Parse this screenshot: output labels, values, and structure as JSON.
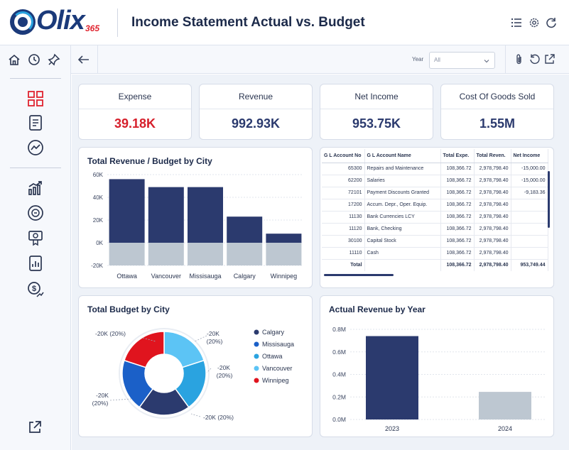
{
  "header": {
    "logo_text": "Olix",
    "logo_sub": "365",
    "title": "Income Statement Actual vs. Budget"
  },
  "toolbar": {
    "year_label": "Year",
    "year_value": "All"
  },
  "kpis": [
    {
      "title": "Expense",
      "value": "39.18K",
      "color": "#d61f2b"
    },
    {
      "title": "Revenue",
      "value": "992.93K",
      "color": "#2b3a6e"
    },
    {
      "title": "Net Income",
      "value": "953.75K",
      "color": "#2b3a6e"
    },
    {
      "title": "Cost Of Goods Sold",
      "value": "1.55M",
      "color": "#2b3a6e"
    }
  ],
  "revenue_budget_card": {
    "title": "Total Revenue / Budget by City"
  },
  "budget_card": {
    "title": "Total Budget by City"
  },
  "actual_card": {
    "title": "Actual Revenue by Year"
  },
  "gl_table": {
    "columns": [
      "G L Account No",
      "G L Account Name",
      "Total Expe.",
      "Total Reven.",
      "Net Income"
    ],
    "rows": [
      [
        "65300",
        "Repairs and Maintenance",
        "108,366.72",
        "2,978,798.40",
        "-15,000.00"
      ],
      [
        "62200",
        "Salaries",
        "108,366.72",
        "2,978,798.40",
        "-15,000.00"
      ],
      [
        "72101",
        "Payment Discounts Granted",
        "108,366.72",
        "2,978,798.40",
        "-9,183.36"
      ],
      [
        "17200",
        "Accum. Depr., Oper. Equip.",
        "108,366.72",
        "2,978,798.40",
        ""
      ],
      [
        "11130",
        "Bank Currencies LCY",
        "108,366.72",
        "2,978,798.40",
        ""
      ],
      [
        "11120",
        "Bank, Checking",
        "108,366.72",
        "2,978,798.40",
        ""
      ],
      [
        "30100",
        "Capital Stock",
        "108,366.72",
        "2,978,798.40",
        ""
      ],
      [
        "11110",
        "Cash",
        "108,366.72",
        "2,978,798.40",
        ""
      ]
    ],
    "total": [
      "Total",
      "",
      "108,366.72",
      "2,978,798.40",
      "953,749.44"
    ]
  },
  "chart_data": [
    {
      "type": "bar",
      "title": "Total Revenue / Budget by City",
      "categories": [
        "Ottawa",
        "Vancouver",
        "Missisauga",
        "Calgary",
        "Winnipeg"
      ],
      "series": [
        {
          "values": [
            56000,
            49000,
            49000,
            23000,
            8000
          ],
          "color": "#2b3a6e"
        },
        {
          "values": [
            -20000,
            -20000,
            -20000,
            -20000,
            -20000
          ],
          "color": "#bdc7d1"
        }
      ],
      "yticks": [
        "60K",
        "40K",
        "20K",
        "0K",
        "-20K"
      ],
      "ylim": [
        -20000,
        60000
      ],
      "grid": true
    },
    {
      "type": "pie",
      "title": "Total Budget by City",
      "donut": true,
      "slices": [
        {
          "name": "Calgary",
          "value": 20,
          "color": "#2b3a6e"
        },
        {
          "name": "Missisauga",
          "value": 20,
          "color": "#1b60c8"
        },
        {
          "name": "Ottawa",
          "value": 20,
          "color": "#2aa3e0"
        },
        {
          "name": "Vancouver",
          "value": 20,
          "color": "#5cc4f5"
        },
        {
          "name": "Winnipeg",
          "value": 20,
          "color": "#e0141e"
        }
      ],
      "slice_labels": [
        "-20K",
        "(20%)",
        "-20K",
        "(20%)",
        "-20K",
        "(20%)",
        "-20K",
        "(20%)",
        "-20K (20%)"
      ],
      "legend": "right"
    },
    {
      "type": "bar",
      "title": "Actual Revenue by Year",
      "categories": [
        "2023",
        "2024"
      ],
      "values": [
        740000,
        245000
      ],
      "colors": [
        "#2b3a6e",
        "#bdc7d1"
      ],
      "yticks": [
        "0.8M",
        "0.6M",
        "0.4M",
        "0.2M",
        "0.0M"
      ],
      "ylim": [
        0,
        800000
      ],
      "grid": true
    }
  ]
}
